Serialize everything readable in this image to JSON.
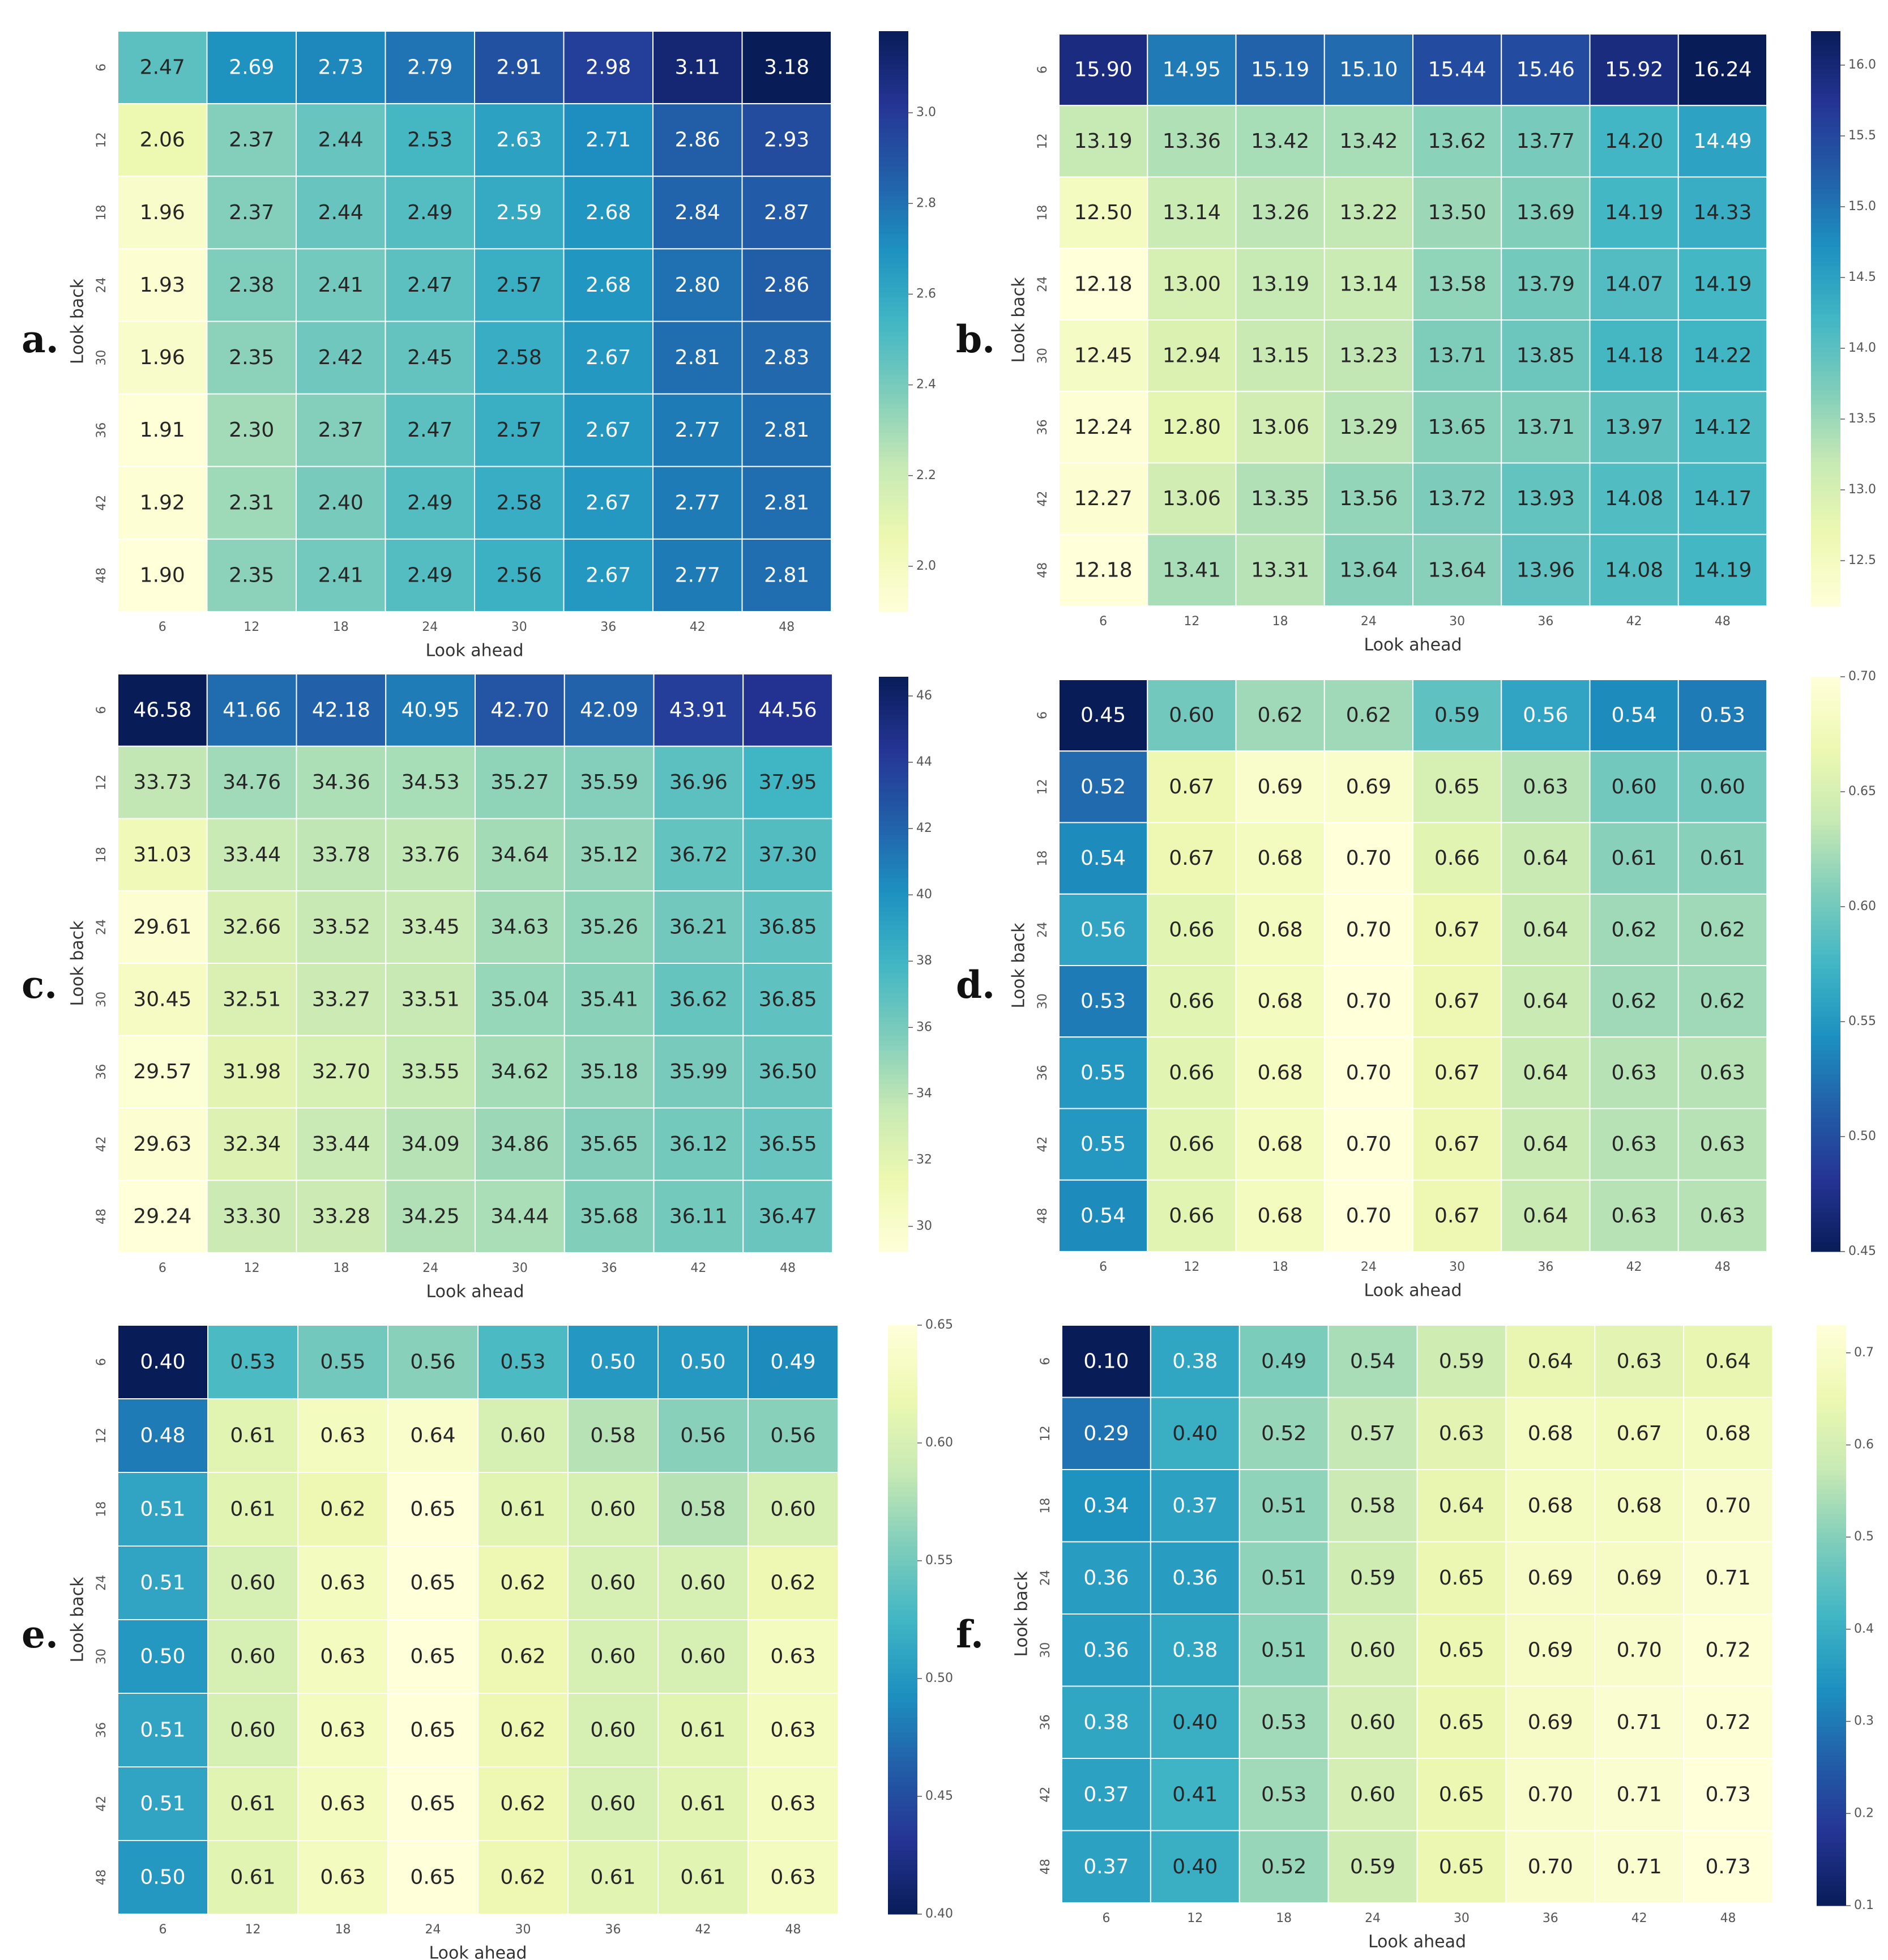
{
  "figure": {
    "panel_letters": [
      "a.",
      "b.",
      "c.",
      "d.",
      "e.",
      "f."
    ]
  },
  "chart_data": [
    {
      "panel": "a.",
      "type": "heatmap",
      "xlabel": "Look ahead",
      "ylabel": "Look back",
      "x_categories": [
        "6",
        "12",
        "18",
        "24",
        "30",
        "36",
        "42",
        "48"
      ],
      "y_categories": [
        "6",
        "12",
        "18",
        "24",
        "30",
        "36",
        "42",
        "48"
      ],
      "values": [
        [
          2.47,
          2.69,
          2.73,
          2.79,
          2.91,
          2.98,
          3.11,
          3.18
        ],
        [
          2.06,
          2.37,
          2.44,
          2.53,
          2.63,
          2.71,
          2.86,
          2.93
        ],
        [
          1.96,
          2.37,
          2.44,
          2.49,
          2.59,
          2.68,
          2.84,
          2.87
        ],
        [
          1.93,
          2.38,
          2.41,
          2.47,
          2.57,
          2.68,
          2.8,
          2.86
        ],
        [
          1.96,
          2.35,
          2.42,
          2.45,
          2.58,
          2.67,
          2.81,
          2.83
        ],
        [
          1.91,
          2.3,
          2.37,
          2.47,
          2.57,
          2.67,
          2.77,
          2.81
        ],
        [
          1.92,
          2.31,
          2.4,
          2.49,
          2.58,
          2.67,
          2.77,
          2.81
        ],
        [
          1.9,
          2.35,
          2.41,
          2.49,
          2.56,
          2.67,
          2.77,
          2.81
        ]
      ],
      "colorscale": "YlGnBu",
      "reversed": false,
      "vmin": 1.9,
      "vmax": 3.18,
      "colorbar_ticks": [
        "2.0",
        "2.2",
        "2.4",
        "2.6",
        "2.8",
        "3.0"
      ]
    },
    {
      "panel": "b.",
      "type": "heatmap",
      "xlabel": "Look ahead",
      "ylabel": "Look back",
      "x_categories": [
        "6",
        "12",
        "18",
        "24",
        "30",
        "36",
        "42",
        "48"
      ],
      "y_categories": [
        "6",
        "12",
        "18",
        "24",
        "30",
        "36",
        "42",
        "48"
      ],
      "values": [
        [
          15.9,
          14.95,
          15.19,
          15.1,
          15.44,
          15.46,
          15.92,
          16.24
        ],
        [
          13.19,
          13.36,
          13.42,
          13.42,
          13.62,
          13.77,
          14.2,
          14.49
        ],
        [
          12.5,
          13.14,
          13.26,
          13.22,
          13.5,
          13.69,
          14.19,
          14.33
        ],
        [
          12.18,
          13.0,
          13.19,
          13.14,
          13.58,
          13.79,
          14.07,
          14.19
        ],
        [
          12.45,
          12.94,
          13.15,
          13.23,
          13.71,
          13.85,
          14.18,
          14.22
        ],
        [
          12.24,
          12.8,
          13.06,
          13.29,
          13.65,
          13.71,
          13.97,
          14.12
        ],
        [
          12.27,
          13.06,
          13.35,
          13.56,
          13.72,
          13.93,
          14.08,
          14.17
        ],
        [
          12.18,
          13.41,
          13.31,
          13.64,
          13.64,
          13.96,
          14.08,
          14.19
        ]
      ],
      "colorscale": "YlGnBu",
      "reversed": false,
      "vmin": 12.18,
      "vmax": 16.24,
      "colorbar_ticks": [
        "12.5",
        "13.0",
        "13.5",
        "14.0",
        "14.5",
        "15.0",
        "15.5",
        "16.0"
      ]
    },
    {
      "panel": "c.",
      "type": "heatmap",
      "xlabel": "Look ahead",
      "ylabel": "Look back",
      "x_categories": [
        "6",
        "12",
        "18",
        "24",
        "30",
        "36",
        "42",
        "48"
      ],
      "y_categories": [
        "6",
        "12",
        "18",
        "24",
        "30",
        "36",
        "42",
        "48"
      ],
      "values": [
        [
          46.58,
          41.66,
          42.18,
          40.95,
          42.7,
          42.09,
          43.91,
          44.56
        ],
        [
          33.73,
          34.76,
          34.36,
          34.53,
          35.27,
          35.59,
          36.96,
          37.95
        ],
        [
          31.03,
          33.44,
          33.78,
          33.76,
          34.64,
          35.12,
          36.72,
          37.3
        ],
        [
          29.61,
          32.66,
          33.52,
          33.45,
          34.63,
          35.26,
          36.21,
          36.85
        ],
        [
          30.45,
          32.51,
          33.27,
          33.51,
          35.04,
          35.41,
          36.62,
          36.85
        ],
        [
          29.57,
          31.98,
          32.7,
          33.55,
          34.62,
          35.18,
          35.99,
          36.5
        ],
        [
          29.63,
          32.34,
          33.44,
          34.09,
          34.86,
          35.65,
          36.12,
          36.55
        ],
        [
          29.24,
          33.3,
          33.28,
          34.25,
          34.44,
          35.68,
          36.11,
          36.47
        ]
      ],
      "colorscale": "YlGnBu",
      "reversed": false,
      "vmin": 29.24,
      "vmax": 46.58,
      "colorbar_ticks": [
        "30",
        "32",
        "34",
        "36",
        "38",
        "40",
        "42",
        "44",
        "46"
      ]
    },
    {
      "panel": "d.",
      "type": "heatmap",
      "xlabel": "Look ahead",
      "ylabel": "Look back",
      "x_categories": [
        "6",
        "12",
        "18",
        "24",
        "30",
        "36",
        "42",
        "48"
      ],
      "y_categories": [
        "6",
        "12",
        "18",
        "24",
        "30",
        "36",
        "42",
        "48"
      ],
      "values": [
        [
          0.45,
          0.6,
          0.62,
          0.62,
          0.59,
          0.56,
          0.54,
          0.53
        ],
        [
          0.52,
          0.67,
          0.69,
          0.69,
          0.65,
          0.63,
          0.6,
          0.6
        ],
        [
          0.54,
          0.67,
          0.68,
          0.7,
          0.66,
          0.64,
          0.61,
          0.61
        ],
        [
          0.56,
          0.66,
          0.68,
          0.7,
          0.67,
          0.64,
          0.62,
          0.62
        ],
        [
          0.53,
          0.66,
          0.68,
          0.7,
          0.67,
          0.64,
          0.62,
          0.62
        ],
        [
          0.55,
          0.66,
          0.68,
          0.7,
          0.67,
          0.64,
          0.63,
          0.63
        ],
        [
          0.55,
          0.66,
          0.68,
          0.7,
          0.67,
          0.64,
          0.63,
          0.63
        ],
        [
          0.54,
          0.66,
          0.68,
          0.7,
          0.67,
          0.64,
          0.63,
          0.63
        ]
      ],
      "colorscale": "YlGnBu",
      "reversed": true,
      "vmin": 0.45,
      "vmax": 0.7,
      "colorbar_ticks": [
        "0.45",
        "0.50",
        "0.55",
        "0.60",
        "0.65",
        "0.70"
      ]
    },
    {
      "panel": "e.",
      "type": "heatmap",
      "xlabel": "Look ahead",
      "ylabel": "Look back",
      "x_categories": [
        "6",
        "12",
        "18",
        "24",
        "30",
        "36",
        "42",
        "48"
      ],
      "y_categories": [
        "6",
        "12",
        "18",
        "24",
        "30",
        "36",
        "42",
        "48"
      ],
      "values": [
        [
          0.4,
          0.53,
          0.55,
          0.56,
          0.53,
          0.5,
          0.5,
          0.49
        ],
        [
          0.48,
          0.61,
          0.63,
          0.64,
          0.6,
          0.58,
          0.56,
          0.56
        ],
        [
          0.51,
          0.61,
          0.62,
          0.65,
          0.61,
          0.6,
          0.58,
          0.6
        ],
        [
          0.51,
          0.6,
          0.63,
          0.65,
          0.62,
          0.6,
          0.6,
          0.62
        ],
        [
          0.5,
          0.6,
          0.63,
          0.65,
          0.62,
          0.6,
          0.6,
          0.63
        ],
        [
          0.51,
          0.6,
          0.63,
          0.65,
          0.62,
          0.6,
          0.61,
          0.63
        ],
        [
          0.51,
          0.61,
          0.63,
          0.65,
          0.62,
          0.6,
          0.61,
          0.63
        ],
        [
          0.5,
          0.61,
          0.63,
          0.65,
          0.62,
          0.61,
          0.61,
          0.63
        ]
      ],
      "colorscale": "YlGnBu",
      "reversed": true,
      "vmin": 0.4,
      "vmax": 0.65,
      "colorbar_ticks": [
        "0.40",
        "0.45",
        "0.50",
        "0.55",
        "0.60",
        "0.65"
      ]
    },
    {
      "panel": "f.",
      "type": "heatmap",
      "xlabel": "Look ahead",
      "ylabel": "Look back",
      "x_categories": [
        "6",
        "12",
        "18",
        "24",
        "30",
        "36",
        "42",
        "48"
      ],
      "y_categories": [
        "6",
        "12",
        "18",
        "24",
        "30",
        "36",
        "42",
        "48"
      ],
      "values": [
        [
          0.1,
          0.38,
          0.49,
          0.54,
          0.59,
          0.64,
          0.63,
          0.64
        ],
        [
          0.29,
          0.4,
          0.52,
          0.57,
          0.63,
          0.68,
          0.67,
          0.68
        ],
        [
          0.34,
          0.37,
          0.51,
          0.58,
          0.64,
          0.68,
          0.68,
          0.7
        ],
        [
          0.36,
          0.36,
          0.51,
          0.59,
          0.65,
          0.69,
          0.69,
          0.71
        ],
        [
          0.36,
          0.38,
          0.51,
          0.6,
          0.65,
          0.69,
          0.7,
          0.72
        ],
        [
          0.38,
          0.4,
          0.53,
          0.6,
          0.65,
          0.69,
          0.71,
          0.72
        ],
        [
          0.37,
          0.41,
          0.53,
          0.6,
          0.65,
          0.7,
          0.71,
          0.73
        ],
        [
          0.37,
          0.4,
          0.52,
          0.59,
          0.65,
          0.7,
          0.71,
          0.73
        ]
      ],
      "colorscale": "YlGnBu",
      "reversed": true,
      "vmin": 0.1,
      "vmax": 0.73,
      "colorbar_ticks": [
        "0.1",
        "0.2",
        "0.3",
        "0.4",
        "0.5",
        "0.6",
        "0.7"
      ]
    }
  ]
}
